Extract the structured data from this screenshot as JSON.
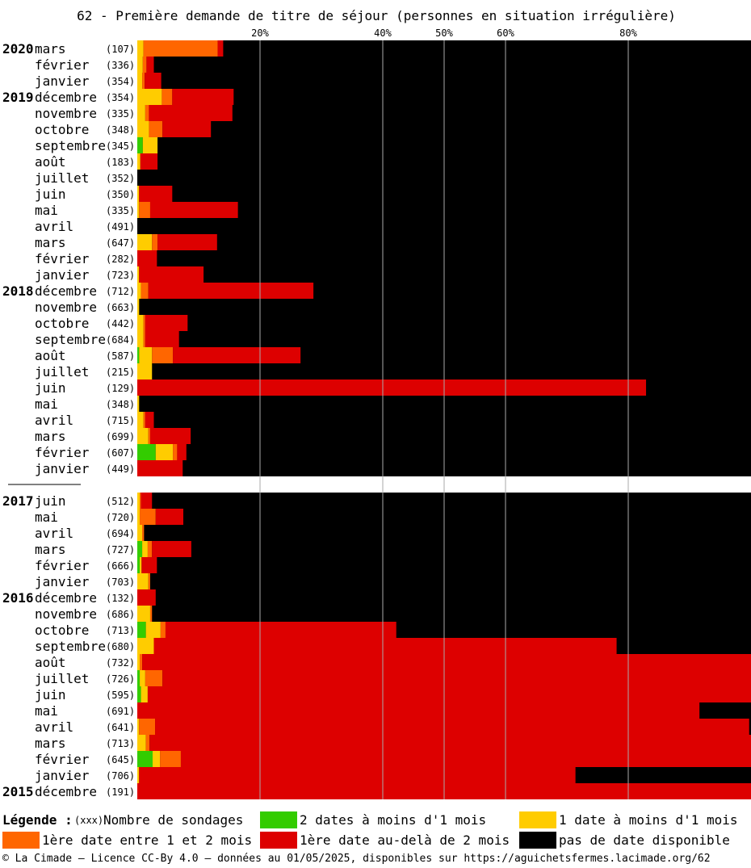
{
  "chart_data": {
    "type": "bar",
    "orientation": "horizontal",
    "stacked": true,
    "title": "62 - Première demande de titre de séjour (personnes en situation irrégulière)",
    "x_ticks": [
      "20%",
      "40%",
      "50%",
      "60%",
      "80%"
    ],
    "x_tick_values": [
      20,
      40,
      50,
      60,
      80
    ],
    "xlim": [
      0,
      100
    ],
    "grid": true,
    "series": [
      {
        "key": "green",
        "name": "2 dates à moins d'1 mois"
      },
      {
        "key": "yellow",
        "name": "1 date à moins d'1 mois"
      },
      {
        "key": "orange",
        "name": "1ère date entre 1 et 2 mois"
      },
      {
        "key": "red",
        "name": "1ère date au-delà de 2 mois"
      },
      {
        "key": "black",
        "name": "pas de date disponible"
      }
    ],
    "groups": [
      {
        "rows": [
          {
            "year": "2020",
            "month": "mars",
            "count": "(107)",
            "green": 0,
            "yellow": 1.0,
            "orange": 12.1,
            "red": 0.9
          },
          {
            "year": "",
            "month": "février",
            "count": "(336)",
            "green": 0,
            "yellow": 0.9,
            "orange": 0.6,
            "red": 1.2
          },
          {
            "year": "",
            "month": "janvier",
            "count": "(354)",
            "green": 0,
            "yellow": 0.8,
            "orange": 0.4,
            "red": 2.7
          },
          {
            "year": "2019",
            "month": "décembre",
            "count": "(354)",
            "green": 0,
            "yellow": 4.0,
            "orange": 1.7,
            "red": 10.0
          },
          {
            "year": "",
            "month": "novembre",
            "count": "(335)",
            "green": 0,
            "yellow": 1.3,
            "orange": 0.6,
            "red": 13.6
          },
          {
            "year": "",
            "month": "octobre",
            "count": "(348)",
            "green": 0,
            "yellow": 1.9,
            "orange": 2.2,
            "red": 7.9
          },
          {
            "year": "",
            "month": "septembre",
            "count": "(345)",
            "green": 0.9,
            "yellow": 2.4,
            "orange": 0,
            "red": 0
          },
          {
            "year": "",
            "month": "août",
            "count": "(183)",
            "green": 0,
            "yellow": 0.5,
            "orange": 0,
            "red": 2.8
          },
          {
            "year": "",
            "month": "juillet",
            "count": "(352)",
            "green": 0,
            "yellow": 0,
            "orange": 0,
            "red": 0
          },
          {
            "year": "",
            "month": "juin",
            "count": "(350)",
            "green": 0,
            "yellow": 0.3,
            "orange": 0,
            "red": 5.4
          },
          {
            "year": "",
            "month": "mai",
            "count": "(335)",
            "green": 0,
            "yellow": 0.3,
            "orange": 1.8,
            "red": 14.3
          },
          {
            "year": "",
            "month": "avril",
            "count": "(491)",
            "green": 0,
            "yellow": 0,
            "orange": 0,
            "red": 0
          },
          {
            "year": "",
            "month": "mars",
            "count": "(647)",
            "green": 0,
            "yellow": 2.4,
            "orange": 0.9,
            "red": 9.7
          },
          {
            "year": "",
            "month": "février",
            "count": "(282)",
            "green": 0,
            "yellow": 0,
            "orange": 0,
            "red": 3.2
          },
          {
            "year": "",
            "month": "janvier",
            "count": "(723)",
            "green": 0,
            "yellow": 0.3,
            "orange": 0,
            "red": 10.5
          },
          {
            "year": "2018",
            "month": "décembre",
            "count": "(712)",
            "green": 0,
            "yellow": 0.6,
            "orange": 1.2,
            "red": 26.9
          },
          {
            "year": "",
            "month": "novembre",
            "count": "(663)",
            "green": 0,
            "yellow": 0.3,
            "orange": 0,
            "red": 0
          },
          {
            "year": "",
            "month": "octobre",
            "count": "(442)",
            "green": 0,
            "yellow": 1.0,
            "orange": 0.3,
            "red": 6.9
          },
          {
            "year": "",
            "month": "septembre",
            "count": "(684)",
            "green": 0,
            "yellow": 1.0,
            "orange": 0.3,
            "red": 5.5
          },
          {
            "year": "",
            "month": "août",
            "count": "(587)",
            "green": 0.3,
            "yellow": 2.1,
            "orange": 3.4,
            "red": 20.8
          },
          {
            "year": "",
            "month": "juillet",
            "count": "(215)",
            "green": 0,
            "yellow": 2.4,
            "orange": 0,
            "red": 0
          },
          {
            "year": "",
            "month": "juin",
            "count": "(129)",
            "green": 0,
            "yellow": 0,
            "orange": 0,
            "red": 82.9
          },
          {
            "year": "",
            "month": "mai",
            "count": "(348)",
            "green": 0,
            "yellow": 0.3,
            "orange": 0,
            "red": 0
          },
          {
            "year": "",
            "month": "avril",
            "count": "(715)",
            "green": 0,
            "yellow": 1.0,
            "orange": 0.3,
            "red": 1.4
          },
          {
            "year": "",
            "month": "mars",
            "count": "(699)",
            "green": 0,
            "yellow": 1.8,
            "orange": 0.3,
            "red": 6.6
          },
          {
            "year": "",
            "month": "février",
            "count": "(607)",
            "green": 3.0,
            "yellow": 2.8,
            "orange": 0.7,
            "red": 1.5
          },
          {
            "year": "",
            "month": "janvier",
            "count": "(449)",
            "green": 0,
            "yellow": 0,
            "orange": 0,
            "red": 7.4
          }
        ]
      },
      {
        "rows": [
          {
            "year": "2017",
            "month": "juin",
            "count": "(512)",
            "green": 0,
            "yellow": 0.4,
            "orange": 0.2,
            "red": 1.8
          },
          {
            "year": "",
            "month": "mai",
            "count": "(720)",
            "green": 0,
            "yellow": 0.4,
            "orange": 2.6,
            "red": 4.5
          },
          {
            "year": "",
            "month": "avril",
            "count": "(694)",
            "green": 0,
            "yellow": 0.8,
            "orange": 0.3,
            "red": 0
          },
          {
            "year": "",
            "month": "mars",
            "count": "(727)",
            "green": 0.8,
            "yellow": 0.9,
            "orange": 0.7,
            "red": 6.4
          },
          {
            "year": "",
            "month": "février",
            "count": "(666)",
            "green": 0.4,
            "yellow": 0.3,
            "orange": 0,
            "red": 2.5
          },
          {
            "year": "",
            "month": "janvier",
            "count": "(703)",
            "green": 0,
            "yellow": 1.8,
            "orange": 0.3,
            "red": 0
          },
          {
            "year": "2016",
            "month": "décembre",
            "count": "(132)",
            "green": 0,
            "yellow": 0,
            "orange": 0,
            "red": 3.0
          },
          {
            "year": "",
            "month": "novembre",
            "count": "(686)",
            "green": 0,
            "yellow": 2.1,
            "orange": 0.3,
            "red": 0
          },
          {
            "year": "",
            "month": "octobre",
            "count": "(713)",
            "green": 1.4,
            "yellow": 2.4,
            "orange": 0.8,
            "red": 37.6
          },
          {
            "year": "",
            "month": "septembre",
            "count": "(680)",
            "green": 0,
            "yellow": 2.7,
            "orange": 0,
            "red": 75.4
          },
          {
            "year": "",
            "month": "août",
            "count": "(732)",
            "green": 0,
            "yellow": 0.4,
            "orange": 0.4,
            "red": 99.2
          },
          {
            "year": "",
            "month": "juillet",
            "count": "(726)",
            "green": 0.4,
            "yellow": 0.9,
            "orange": 2.8,
            "red": 95.9
          },
          {
            "year": "",
            "month": "juin",
            "count": "(595)",
            "green": 0.6,
            "yellow": 1.1,
            "orange": 0,
            "red": 98.3
          },
          {
            "year": "",
            "month": "mai",
            "count": "(691)",
            "green": 0,
            "yellow": 0,
            "orange": 0,
            "red": 91.6
          },
          {
            "year": "",
            "month": "avril",
            "count": "(641)",
            "green": 0,
            "yellow": 0.3,
            "orange": 2.6,
            "red": 96.8
          },
          {
            "year": "",
            "month": "mars",
            "count": "(713)",
            "green": 0,
            "yellow": 1.4,
            "orange": 0.6,
            "red": 98.0
          },
          {
            "year": "",
            "month": "février",
            "count": "(645)",
            "green": 2.5,
            "yellow": 1.2,
            "orange": 3.4,
            "red": 92.9
          },
          {
            "year": "",
            "month": "janvier",
            "count": "(706)",
            "green": 0,
            "yellow": 0.3,
            "orange": 0,
            "red": 71.1
          },
          {
            "year": "2015",
            "month": "décembre",
            "count": "(191)",
            "green": 0,
            "yellow": 0,
            "orange": 0,
            "red": 100.0
          }
        ]
      }
    ]
  },
  "colors": {
    "green": "#33cc00",
    "yellow": "#ffcc00",
    "orange": "#ff6600",
    "red": "#dd0000",
    "black": "#000000",
    "grid": "#aaaaaa",
    "background": "#ffffff"
  },
  "legend": {
    "label": "Légende :",
    "count_hint": "(xxx)",
    "count_label": "Nombre de sondages",
    "green": "2 dates à moins d'1 mois",
    "yellow": "1 date à moins d'1 mois",
    "orange": "1ère date entre 1 et 2 mois",
    "red": "1ère date au-delà de 2 mois",
    "black": "pas de date disponible"
  },
  "footer": "© La Cimade — Licence CC-By 4.0 — données au 01/05/2025, disponibles sur https://aguichetsfermes.lacimade.org/62"
}
